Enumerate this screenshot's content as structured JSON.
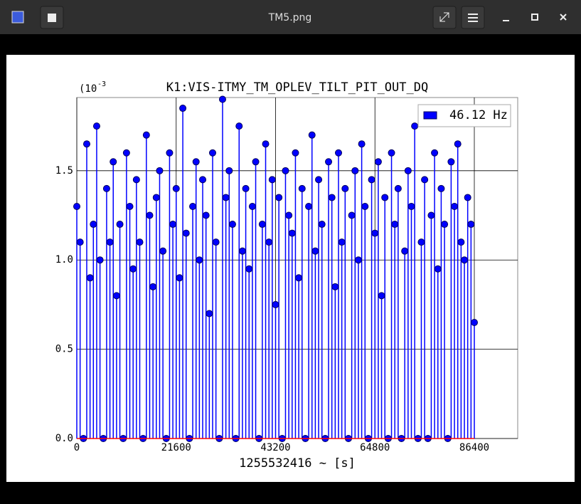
{
  "window": {
    "title": "TM5.png"
  },
  "chart_data": {
    "type": "stem",
    "title": "K1:VIS-ITMY_TM_OPLEV_TILT_PIT_OUT_DQ",
    "xlabel": "1255532416 ~ [s]",
    "y_scale": {
      "base": "(10",
      "exponent": "-3"
    },
    "legend": "upper right",
    "grid": true,
    "xlim": [
      0,
      95830
    ],
    "xticks": [
      0,
      21600,
      43200,
      64800,
      86400
    ],
    "ylim": [
      0,
      1.91
    ],
    "yticks": [
      {
        "value": 0,
        "label": "0.0"
      },
      {
        "value": 0.5,
        "label": "0.5"
      },
      {
        "value": 1,
        "label": "1.0"
      },
      {
        "value": 1.5,
        "label": "1.5"
      }
    ],
    "x": [
      0,
      720,
      1440,
      2160,
      2880,
      3600,
      4320,
      5040,
      5760,
      6480,
      7200,
      7920,
      8640,
      9360,
      10080,
      10800,
      11520,
      12240,
      12960,
      13680,
      14400,
      15120,
      15840,
      16560,
      17280,
      18000,
      18720,
      19440,
      20160,
      20880,
      21600,
      22320,
      23040,
      23760,
      24480,
      25200,
      25920,
      26640,
      27360,
      28080,
      28800,
      29520,
      30240,
      30960,
      31680,
      32400,
      33120,
      33840,
      34560,
      35280,
      36000,
      36720,
      37440,
      38160,
      38880,
      39600,
      40320,
      41040,
      41760,
      42480,
      43200,
      43920,
      44640,
      45360,
      46080,
      46800,
      47520,
      48240,
      48960,
      49680,
      50400,
      51120,
      51840,
      52560,
      53280,
      54000,
      54720,
      55440,
      56160,
      56880,
      57600,
      58320,
      59040,
      59760,
      60480,
      61200,
      61920,
      62640,
      63360,
      64080,
      64800,
      65520,
      66240,
      66960,
      67680,
      68400,
      69120,
      69840,
      70560,
      71280,
      72000,
      72720,
      73440,
      74160,
      74880,
      75600,
      76320,
      77040,
      77760,
      78480,
      79200,
      79920,
      80640,
      81360,
      82080,
      82800,
      83520,
      84240,
      84960,
      85680,
      86400
    ],
    "series": [
      {
        "name": "46.12 Hz",
        "color": "#0000ff",
        "edgecolor": "#00005a",
        "values": [
          1.3,
          1.1,
          0.0,
          1.65,
          0.9,
          1.2,
          1.75,
          1.0,
          0.0,
          1.4,
          1.1,
          1.55,
          0.8,
          1.2,
          0.0,
          1.6,
          1.3,
          0.95,
          1.45,
          1.1,
          0.0,
          1.7,
          1.25,
          0.85,
          1.35,
          1.5,
          1.05,
          0.0,
          1.6,
          1.2,
          1.4,
          0.9,
          1.85,
          1.15,
          0.0,
          1.3,
          1.55,
          1.0,
          1.45,
          1.25,
          0.7,
          1.6,
          1.1,
          0.0,
          1.9,
          1.35,
          1.5,
          1.2,
          0.0,
          1.75,
          1.05,
          1.4,
          0.95,
          1.3,
          1.55,
          0.0,
          1.2,
          1.65,
          1.1,
          1.45,
          0.75,
          1.35,
          0.0,
          1.5,
          1.25,
          1.15,
          1.6,
          0.9,
          1.4,
          0.0,
          1.3,
          1.7,
          1.05,
          1.45,
          1.2,
          0.0,
          1.55,
          1.35,
          0.85,
          1.6,
          1.1,
          1.4,
          0.0,
          1.25,
          1.5,
          1.0,
          1.65,
          1.3,
          0.0,
          1.45,
          1.15,
          1.55,
          0.8,
          1.35,
          0.0,
          1.6,
          1.2,
          1.4,
          0.0,
          1.05,
          1.5,
          1.3,
          1.75,
          0.0,
          1.1,
          1.45,
          0.0,
          1.25,
          1.6,
          0.95,
          1.4,
          1.2,
          0.0,
          1.55,
          1.3,
          1.65,
          1.1,
          1.0,
          1.35,
          1.2,
          0.65
        ]
      }
    ]
  }
}
